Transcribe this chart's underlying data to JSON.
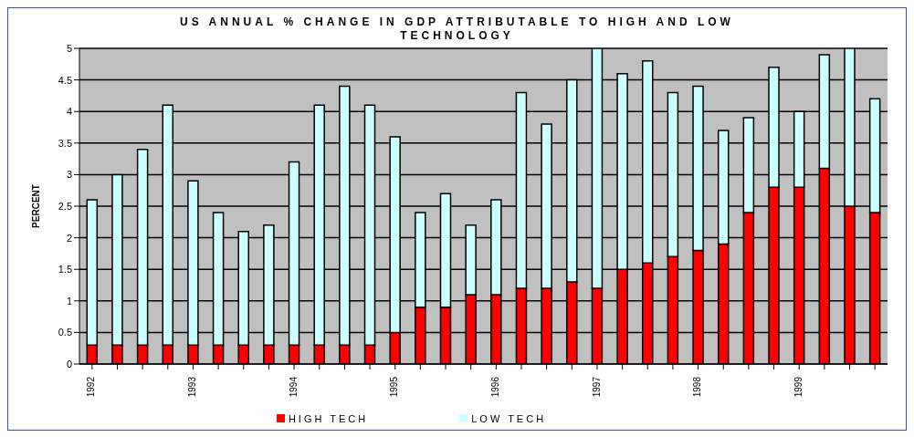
{
  "chart_data": {
    "type": "bar",
    "title": "US ANNUAL % CHANGE IN GDP ATTRIBUTABLE TO HIGH AND LOW TECHNOLOGY",
    "ylabel": "PERCENT",
    "categories": [
      "1992",
      null,
      null,
      null,
      "1993",
      null,
      null,
      null,
      "1994",
      null,
      null,
      null,
      "1995",
      null,
      null,
      null,
      "1996",
      null,
      null,
      null,
      "1997",
      null,
      null,
      null,
      "1998",
      null,
      null,
      null,
      "1999",
      null,
      null,
      null
    ],
    "stacked": true,
    "ylim": [
      0,
      5
    ],
    "yticks": [
      0,
      0.5,
      1,
      1.5,
      2,
      2.5,
      3,
      3.5,
      4,
      4.5,
      5
    ],
    "grid": "y",
    "legend": "bottom",
    "series": [
      {
        "name": "HIGH TECH",
        "color": "#ff0000",
        "values": [
          0.3,
          0.3,
          0.3,
          0.3,
          0.3,
          0.3,
          0.3,
          0.3,
          0.3,
          0.3,
          0.3,
          0.3,
          0.5,
          0.9,
          0.9,
          1.1,
          1.1,
          1.2,
          1.2,
          1.3,
          1.2,
          1.5,
          1.6,
          1.7,
          1.8,
          1.9,
          2.4,
          2.8,
          2.8,
          3.1,
          2.5,
          2.4
        ]
      },
      {
        "name": "LOW TECH",
        "color": "#ccffff",
        "values": [
          2.3,
          2.7,
          3.1,
          3.8,
          2.6,
          2.1,
          1.8,
          1.9,
          2.9,
          3.8,
          4.1,
          3.8,
          3.1,
          1.5,
          1.8,
          1.1,
          1.5,
          3.1,
          2.6,
          3.2,
          3.8,
          3.1,
          3.2,
          2.6,
          2.6,
          1.8,
          1.5,
          1.9,
          1.2,
          1.8,
          2.5,
          1.8
        ]
      }
    ]
  }
}
